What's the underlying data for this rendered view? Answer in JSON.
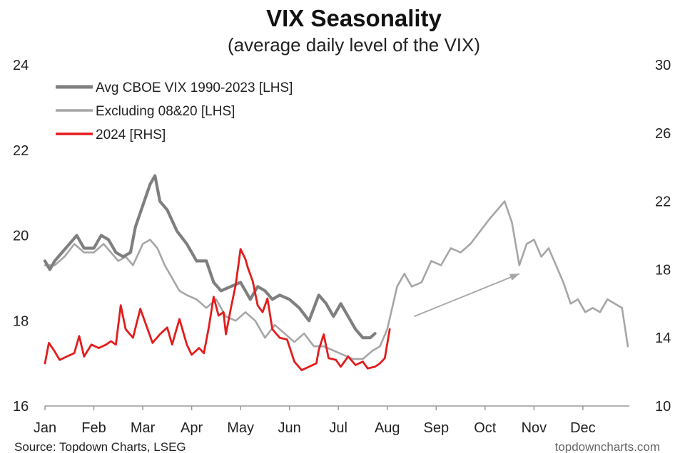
{
  "chart_data": {
    "type": "line",
    "title": "VIX Seasonality",
    "subtitle": "(average daily level of the VIX)",
    "x_categories": [
      "Jan",
      "Feb",
      "Mar",
      "Apr",
      "May",
      "Jun",
      "Jul",
      "Aug",
      "Sep",
      "Oct",
      "Nov",
      "Dec"
    ],
    "ylim_left": [
      16,
      24
    ],
    "yticks_left": [
      "16",
      "18",
      "20",
      "22",
      "24"
    ],
    "ylim_right": [
      10,
      30
    ],
    "yticks_right": [
      "10",
      "14",
      "18",
      "22",
      "26",
      "30"
    ],
    "legend_placement": "top-left",
    "grid": false,
    "series": [
      {
        "name": "Avg CBOE VIX 1990-2023 [LHS]",
        "axis": "left",
        "color": "#7f7f7f",
        "points": [
          [
            0,
            19.4
          ],
          [
            0.1,
            19.2
          ],
          [
            0.2,
            19.4
          ],
          [
            0.35,
            19.6
          ],
          [
            0.5,
            19.8
          ],
          [
            0.65,
            20.0
          ],
          [
            0.8,
            19.7
          ],
          [
            1.0,
            19.7
          ],
          [
            1.15,
            20.0
          ],
          [
            1.3,
            19.9
          ],
          [
            1.45,
            19.6
          ],
          [
            1.6,
            19.5
          ],
          [
            1.75,
            19.6
          ],
          [
            1.85,
            20.2
          ],
          [
            2.0,
            20.7
          ],
          [
            2.15,
            21.2
          ],
          [
            2.25,
            21.4
          ],
          [
            2.35,
            20.8
          ],
          [
            2.5,
            20.6
          ],
          [
            2.7,
            20.1
          ],
          [
            2.9,
            19.8
          ],
          [
            3.1,
            19.4
          ],
          [
            3.3,
            19.4
          ],
          [
            3.45,
            18.9
          ],
          [
            3.6,
            18.7
          ],
          [
            3.8,
            18.8
          ],
          [
            4.0,
            18.9
          ],
          [
            4.2,
            18.5
          ],
          [
            4.35,
            18.8
          ],
          [
            4.5,
            18.7
          ],
          [
            4.65,
            18.5
          ],
          [
            4.8,
            18.6
          ],
          [
            5.0,
            18.5
          ],
          [
            5.2,
            18.3
          ],
          [
            5.4,
            18.0
          ],
          [
            5.6,
            18.6
          ],
          [
            5.75,
            18.4
          ],
          [
            5.9,
            18.1
          ],
          [
            6.05,
            18.4
          ],
          [
            6.2,
            18.1
          ],
          [
            6.35,
            17.8
          ],
          [
            6.5,
            17.6
          ],
          [
            6.65,
            17.6
          ],
          [
            6.75,
            17.7
          ]
        ]
      },
      {
        "name": "Excluding 08&20 [LHS]",
        "axis": "left",
        "color": "#a6a6a6",
        "points": [
          [
            0,
            19.3
          ],
          [
            0.2,
            19.3
          ],
          [
            0.4,
            19.5
          ],
          [
            0.6,
            19.8
          ],
          [
            0.8,
            19.6
          ],
          [
            1.0,
            19.6
          ],
          [
            1.2,
            19.8
          ],
          [
            1.35,
            19.6
          ],
          [
            1.5,
            19.4
          ],
          [
            1.65,
            19.5
          ],
          [
            1.8,
            19.3
          ],
          [
            2.0,
            19.8
          ],
          [
            2.15,
            19.9
          ],
          [
            2.3,
            19.7
          ],
          [
            2.45,
            19.3
          ],
          [
            2.6,
            19.0
          ],
          [
            2.75,
            18.7
          ],
          [
            2.9,
            18.6
          ],
          [
            3.1,
            18.5
          ],
          [
            3.3,
            18.3
          ],
          [
            3.5,
            18.5
          ],
          [
            3.7,
            18.1
          ],
          [
            3.9,
            18.0
          ],
          [
            4.1,
            18.2
          ],
          [
            4.3,
            18.0
          ],
          [
            4.5,
            17.6
          ],
          [
            4.7,
            17.9
          ],
          [
            4.9,
            17.7
          ],
          [
            5.1,
            17.5
          ],
          [
            5.3,
            17.7
          ],
          [
            5.5,
            17.4
          ],
          [
            5.7,
            17.4
          ],
          [
            5.9,
            17.3
          ],
          [
            6.1,
            17.2
          ],
          [
            6.3,
            17.1
          ],
          [
            6.5,
            17.1
          ],
          [
            6.7,
            17.3
          ],
          [
            6.85,
            17.4
          ],
          [
            7.0,
            17.8
          ],
          [
            7.1,
            18.3
          ],
          [
            7.2,
            18.8
          ],
          [
            7.35,
            19.1
          ],
          [
            7.5,
            18.8
          ],
          [
            7.7,
            18.9
          ],
          [
            7.9,
            19.4
          ],
          [
            8.1,
            19.3
          ],
          [
            8.3,
            19.7
          ],
          [
            8.5,
            19.6
          ],
          [
            8.7,
            19.8
          ],
          [
            8.9,
            20.1
          ],
          [
            9.1,
            20.4
          ],
          [
            9.25,
            20.6
          ],
          [
            9.4,
            20.8
          ],
          [
            9.55,
            20.3
          ],
          [
            9.7,
            19.3
          ],
          [
            9.85,
            19.8
          ],
          [
            10.0,
            19.9
          ],
          [
            10.15,
            19.5
          ],
          [
            10.3,
            19.7
          ],
          [
            10.45,
            19.3
          ],
          [
            10.6,
            18.9
          ],
          [
            10.75,
            18.4
          ],
          [
            10.9,
            18.5
          ],
          [
            11.05,
            18.2
          ],
          [
            11.2,
            18.3
          ],
          [
            11.35,
            18.2
          ],
          [
            11.5,
            18.5
          ],
          [
            11.65,
            18.4
          ],
          [
            11.8,
            18.3
          ],
          [
            11.92,
            17.4
          ]
        ]
      },
      {
        "name": "2024 [RHS]",
        "axis": "right",
        "color": "#e31c1c",
        "points": [
          [
            0,
            12.5
          ],
          [
            0.08,
            13.7
          ],
          [
            0.2,
            13.2
          ],
          [
            0.3,
            12.7
          ],
          [
            0.45,
            12.9
          ],
          [
            0.6,
            13.1
          ],
          [
            0.7,
            14.1
          ],
          [
            0.8,
            12.9
          ],
          [
            0.95,
            13.6
          ],
          [
            1.1,
            13.4
          ],
          [
            1.25,
            13.6
          ],
          [
            1.35,
            13.8
          ],
          [
            1.45,
            13.6
          ],
          [
            1.55,
            15.9
          ],
          [
            1.65,
            14.5
          ],
          [
            1.8,
            14.0
          ],
          [
            1.95,
            15.7
          ],
          [
            2.05,
            14.9
          ],
          [
            2.2,
            13.7
          ],
          [
            2.35,
            14.2
          ],
          [
            2.5,
            14.6
          ],
          [
            2.6,
            13.6
          ],
          [
            2.75,
            15.1
          ],
          [
            2.9,
            13.6
          ],
          [
            3.0,
            13.0
          ],
          [
            3.15,
            13.4
          ],
          [
            3.25,
            13.1
          ],
          [
            3.35,
            14.6
          ],
          [
            3.45,
            16.4
          ],
          [
            3.55,
            15.3
          ],
          [
            3.65,
            15.5
          ],
          [
            3.7,
            14.2
          ],
          [
            3.8,
            15.7
          ],
          [
            3.9,
            17.1
          ],
          [
            4.0,
            19.2
          ],
          [
            4.1,
            18.6
          ],
          [
            4.15,
            18.1
          ],
          [
            4.25,
            17.3
          ],
          [
            4.35,
            15.9
          ],
          [
            4.45,
            15.5
          ],
          [
            4.55,
            16.3
          ],
          [
            4.65,
            14.5
          ],
          [
            4.8,
            14.0
          ],
          [
            4.95,
            13.9
          ],
          [
            5.1,
            12.6
          ],
          [
            5.25,
            12.1
          ],
          [
            5.4,
            12.3
          ],
          [
            5.55,
            12.5
          ],
          [
            5.6,
            13.3
          ],
          [
            5.7,
            14.2
          ],
          [
            5.8,
            12.8
          ],
          [
            5.95,
            12.7
          ],
          [
            6.05,
            12.3
          ],
          [
            6.2,
            12.9
          ],
          [
            6.35,
            12.4
          ],
          [
            6.5,
            12.6
          ],
          [
            6.6,
            12.2
          ],
          [
            6.75,
            12.3
          ],
          [
            6.85,
            12.5
          ],
          [
            6.95,
            12.8
          ],
          [
            7.05,
            14.5
          ]
        ]
      }
    ],
    "annotations": [
      {
        "type": "arrow",
        "from": [
          7.55,
          18.1
        ],
        "to": [
          9.7,
          19.1
        ],
        "color": "#a6a6a6"
      }
    ]
  },
  "footer": {
    "source": "Source: Topdown Charts, LSEG",
    "brand": "topdowncharts.com"
  }
}
